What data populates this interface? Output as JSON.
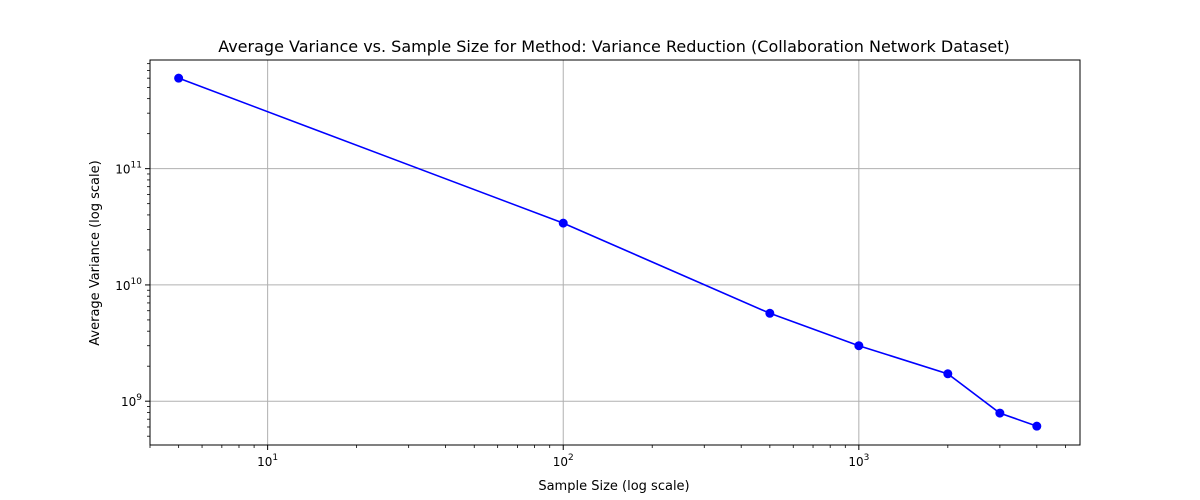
{
  "chart_data": {
    "type": "line",
    "title": "Average Variance vs. Sample Size for Method: Variance Reduction (Collaboration Network Dataset)",
    "xlabel": "Sample Size (log scale)",
    "ylabel": "Average Variance (log scale)",
    "xscale": "log",
    "yscale": "log",
    "xlim": [
      4,
      5600
    ],
    "ylim": [
      420000000.0,
      860000000000.0
    ],
    "grid": true,
    "x_ticks": [
      {
        "value": 10,
        "base": "10",
        "exp": "1"
      },
      {
        "value": 100,
        "base": "10",
        "exp": "2"
      },
      {
        "value": 1000,
        "base": "10",
        "exp": "3"
      }
    ],
    "y_ticks": [
      {
        "value": 1000000000.0,
        "base": "10",
        "exp": "9"
      },
      {
        "value": 10000000000.0,
        "base": "10",
        "exp": "10"
      },
      {
        "value": 100000000000.0,
        "base": "10",
        "exp": "11"
      }
    ],
    "series": [
      {
        "color": "#0000ff",
        "marker": "circle",
        "x": [
          5,
          100,
          500,
          1000,
          2000,
          3000,
          4000
        ],
        "y": [
          600000000000.0,
          34000000000.0,
          5700000000.0,
          3000000000.0,
          1720000000.0,
          790000000.0,
          610000000.0
        ]
      }
    ]
  }
}
